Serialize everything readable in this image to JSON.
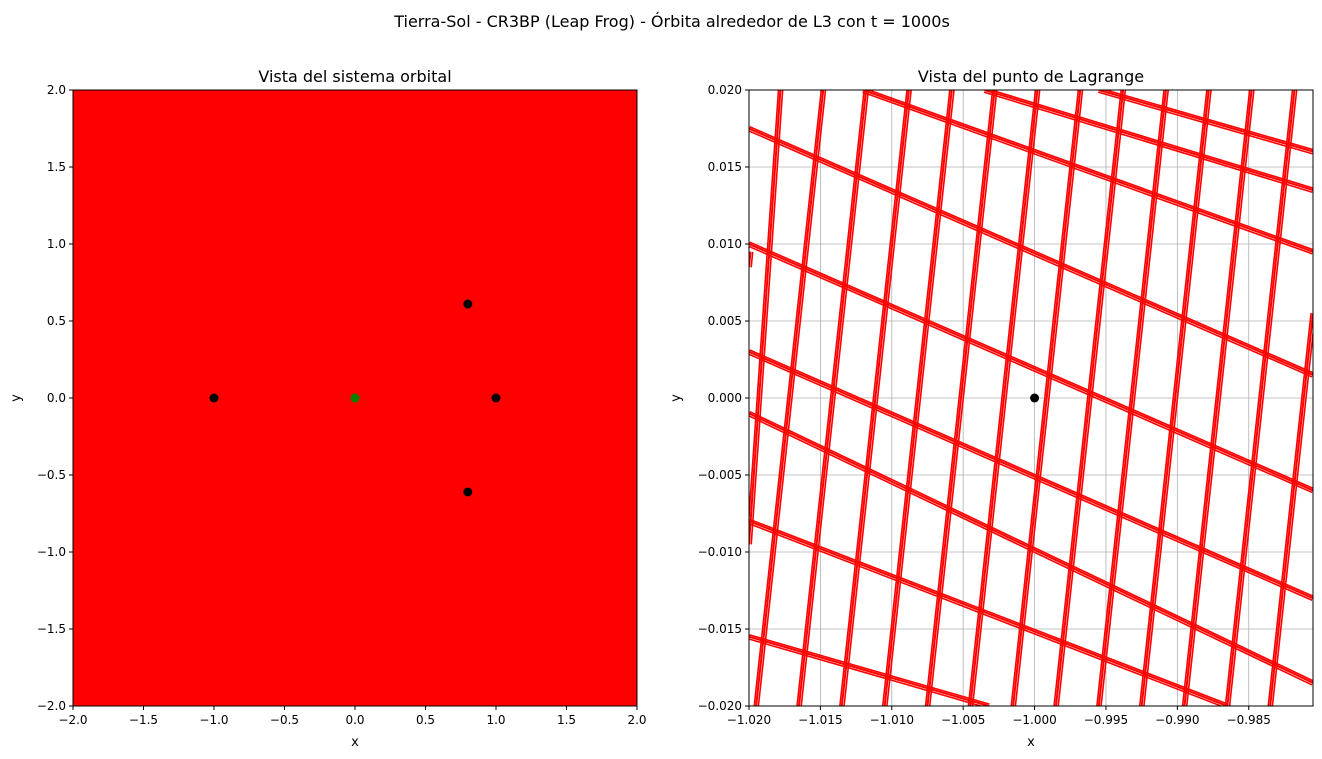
{
  "figure": {
    "suptitle": "Tierra-Sol - CR3BP (Leap Frog) - Órbita alrededor de L3 con t = 1000s"
  },
  "chart_data": [
    {
      "type": "scatter",
      "title": "Vista del sistema orbital",
      "xlabel": "x",
      "ylabel": "y",
      "xlim": [
        -2.0,
        2.0
      ],
      "ylim": [
        -2.0,
        2.0
      ],
      "xticks": [
        -2.0,
        -1.5,
        -1.0,
        -0.5,
        0.0,
        0.5,
        1.0,
        1.5,
        2.0
      ],
      "yticks": [
        -2.0,
        -1.5,
        -1.0,
        -0.5,
        0.0,
        0.5,
        1.0,
        1.5,
        2.0
      ],
      "xtick_labels": [
        "−2.0",
        "−1.5",
        "−1.0",
        "−0.5",
        "0.0",
        "0.5",
        "1.0",
        "1.5",
        "2.0"
      ],
      "ytick_labels": [
        "−2.0",
        "−1.5",
        "−1.0",
        "−0.5",
        "0.0",
        "0.5",
        "1.0",
        "1.5",
        "2.0"
      ],
      "background_fill": "#ff0000",
      "grid": false,
      "series": [
        {
          "color": "#000000",
          "marker": "circle",
          "points": [
            [
              -1.0,
              0.0
            ],
            [
              0.8,
              0.61
            ],
            [
              1.0,
              0.0
            ],
            [
              0.8,
              -0.61
            ]
          ]
        },
        {
          "color": "#008000",
          "marker": "circle",
          "points": [
            [
              0.0,
              0.0
            ]
          ]
        }
      ]
    },
    {
      "type": "line",
      "title": "Vista del punto de Lagrange",
      "xlabel": "x",
      "ylabel": "y",
      "xlim": [
        -1.02,
        -0.9805
      ],
      "ylim": [
        -0.02,
        0.02
      ],
      "xticks": [
        -1.02,
        -1.015,
        -1.01,
        -1.005,
        -1.0,
        -0.995,
        -0.99,
        -0.985
      ],
      "yticks": [
        -0.02,
        -0.015,
        -0.01,
        -0.005,
        0.0,
        0.005,
        0.01,
        0.015,
        0.02
      ],
      "xtick_labels": [
        "−1.020",
        "−1.015",
        "−1.010",
        "−1.005",
        "−1.000",
        "−0.995",
        "−0.990",
        "−0.985"
      ],
      "ytick_labels": [
        "−0.020",
        "−0.015",
        "−0.010",
        "−0.005",
        "0.000",
        "0.005",
        "0.010",
        "0.015",
        "0.020"
      ],
      "grid": true,
      "orbit_color": "#ff0000",
      "orbit_families": [
        {
          "description": "steep segments",
          "segments": [
            [
              [
                -1.0195,
                -0.02
              ],
              [
                -1.0148,
                0.02
              ]
            ],
            [
              [
                -1.0165,
                -0.02
              ],
              [
                -1.0118,
                0.02
              ]
            ],
            [
              [
                -1.0135,
                -0.02
              ],
              [
                -1.0088,
                0.02
              ]
            ],
            [
              [
                -1.0105,
                -0.02
              ],
              [
                -1.0058,
                0.02
              ]
            ],
            [
              [
                -1.0075,
                -0.02
              ],
              [
                -1.0028,
                0.02
              ]
            ],
            [
              [
                -1.0045,
                -0.02
              ],
              [
                -0.9998,
                0.02
              ]
            ],
            [
              [
                -1.0015,
                -0.02
              ],
              [
                -0.9968,
                0.02
              ]
            ],
            [
              [
                -0.9985,
                -0.02
              ],
              [
                -0.9938,
                0.02
              ]
            ],
            [
              [
                -0.9955,
                -0.02
              ],
              [
                -0.9908,
                0.02
              ]
            ],
            [
              [
                -0.9925,
                -0.02
              ],
              [
                -0.9878,
                0.02
              ]
            ],
            [
              [
                -0.9895,
                -0.02
              ],
              [
                -0.9848,
                0.02
              ]
            ],
            [
              [
                -0.9865,
                -0.02
              ],
              [
                -0.9818,
                0.02
              ]
            ],
            [
              [
                -0.9835,
                -0.02
              ],
              [
                -0.9805,
                0.0055
              ]
            ],
            [
              [
                -1.02,
                -0.0095
              ],
              [
                -1.0178,
                0.02
              ]
            ],
            [
              [
                -1.02,
                0.0085
              ],
              [
                -1.0199,
                0.0095
              ]
            ]
          ]
        },
        {
          "description": "shallow segments",
          "segments": [
            [
              [
                -1.02,
                0.0175
              ],
              [
                -0.9805,
                0.0015
              ]
            ],
            [
              [
                -1.02,
                0.01
              ],
              [
                -0.9805,
                -0.006
              ]
            ],
            [
              [
                -1.02,
                0.003
              ],
              [
                -0.9805,
                -0.013
              ]
            ],
            [
              [
                -1.02,
                -0.001
              ],
              [
                -0.9805,
                -0.0185
              ]
            ],
            [
              [
                -1.02,
                -0.008
              ],
              [
                -0.9865,
                -0.02
              ]
            ],
            [
              [
                -1.02,
                -0.0155
              ],
              [
                -1.0032,
                -0.02
              ]
            ],
            [
              [
                -1.012,
                0.02
              ],
              [
                -0.9805,
                0.0095
              ]
            ],
            [
              [
                -1.0035,
                0.02
              ],
              [
                -0.9805,
                0.0135
              ]
            ],
            [
              [
                -0.9955,
                0.02
              ],
              [
                -0.9805,
                0.016
              ]
            ]
          ]
        }
      ],
      "points": [
        {
          "color": "#000000",
          "marker": "circle",
          "x": -1.0,
          "y": 0.0
        }
      ]
    }
  ]
}
